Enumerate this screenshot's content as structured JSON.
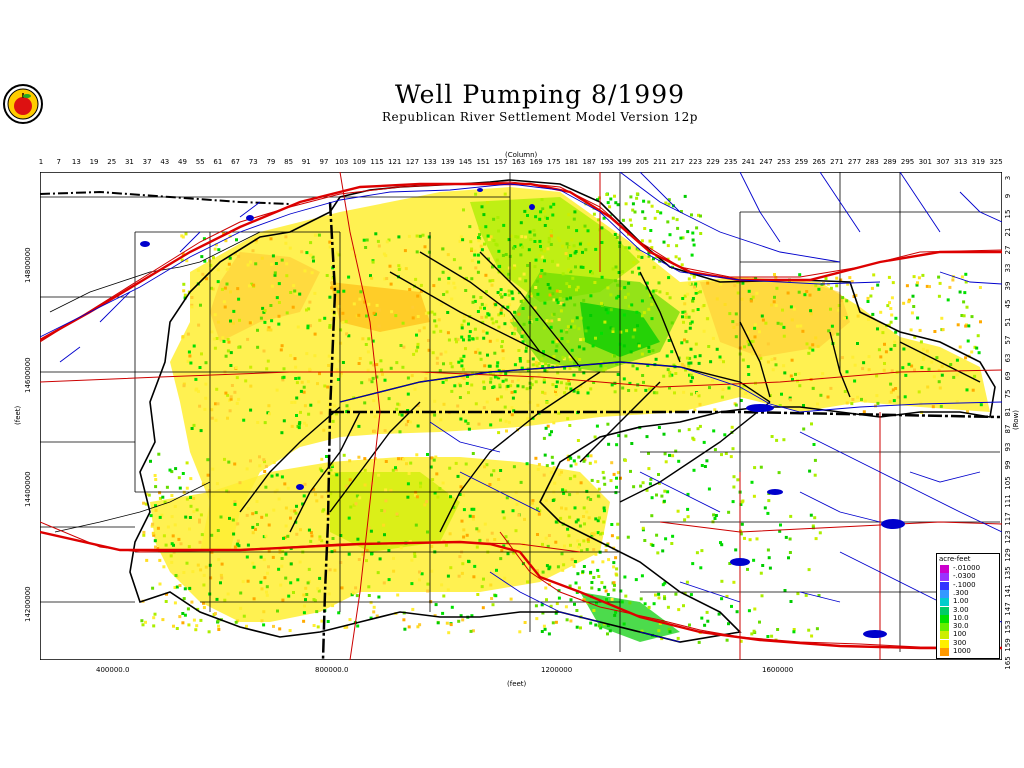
{
  "header": {
    "title": "Well Pumping   8/1999",
    "subtitle": "Republican River Settlement Model Version 12p"
  },
  "axes": {
    "x_top_label": "(Column)",
    "x_bottom_label": "(feet)",
    "y_left_label": "(feet)",
    "y_right_label": "(Row)",
    "x_bottom_ticks": [
      "400000.0",
      "800000.0",
      "1200000",
      "1600000"
    ],
    "y_left_ticks": [
      "14800000",
      "14600000",
      "14400000",
      "14200000"
    ],
    "column_ticks": [
      "1",
      "7",
      "13",
      "19",
      "25",
      "31",
      "37",
      "43",
      "49",
      "55",
      "61",
      "67",
      "73",
      "79",
      "85",
      "91",
      "97",
      "103",
      "109",
      "115",
      "121",
      "127",
      "133",
      "139",
      "145",
      "151",
      "157",
      "163",
      "169",
      "175",
      "181",
      "187",
      "193",
      "199",
      "205",
      "211",
      "217",
      "223",
      "229",
      "235",
      "241",
      "247",
      "253",
      "259",
      "265",
      "271",
      "277",
      "283",
      "289",
      "295",
      "301",
      "307",
      "313",
      "319",
      "325"
    ],
    "row_ticks": [
      "3",
      "9",
      "15",
      "21",
      "27",
      "33",
      "39",
      "45",
      "51",
      "57",
      "63",
      "69",
      "75",
      "81",
      "87",
      "93",
      "99",
      "105",
      "111",
      "117",
      "123",
      "129",
      "135",
      "141",
      "147",
      "153",
      "159",
      "165"
    ]
  },
  "legend": {
    "title": "acre-feet",
    "items": [
      {
        "label": "-.01000",
        "color": "#cc00cc"
      },
      {
        "label": "-.0300",
        "color": "#9933ff"
      },
      {
        "label": "-.1000",
        "color": "#3333ff"
      },
      {
        "label": ".300",
        "color": "#3399ff"
      },
      {
        "label": "1.00",
        "color": "#00cccc"
      },
      {
        "label": "3.00",
        "color": "#00cc66"
      },
      {
        "label": "10.0",
        "color": "#00e000"
      },
      {
        "label": "30.0",
        "color": "#66ee00"
      },
      {
        "label": "100",
        "color": "#ccee00"
      },
      {
        "label": "300",
        "color": "#ffee00"
      },
      {
        "label": "1000",
        "color": "#ff9900"
      }
    ]
  },
  "colors": {
    "rivers": "#0000cc",
    "roads": "#cc0000",
    "boundaries": "#000000",
    "low_pumping": "#ffee33",
    "mid_pumping": "#aaee00",
    "high_pumping": "#00cc00"
  }
}
